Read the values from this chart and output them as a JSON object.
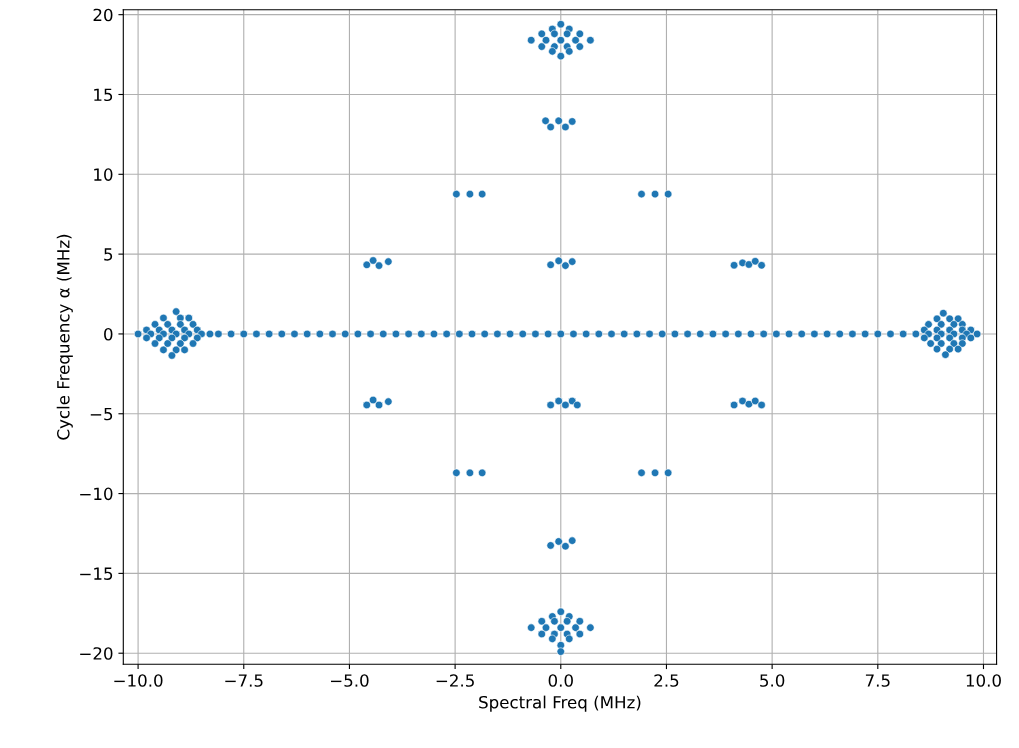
{
  "chart_data": {
    "type": "scatter",
    "xlabel": "Spectral Freq (MHz)",
    "ylabel": "Cycle Frequency α (MHz)",
    "xlim": [
      -10.35,
      10.31
    ],
    "ylim": [
      -20.69,
      20.31
    ],
    "xticks": [
      {
        "value": -10,
        "label": "−10.0"
      },
      {
        "value": -7.5,
        "label": "−7.5"
      },
      {
        "value": -5,
        "label": "−5.0"
      },
      {
        "value": -2.5,
        "label": "−2.5"
      },
      {
        "value": 0,
        "label": "0.0"
      },
      {
        "value": 2.5,
        "label": "2.5"
      },
      {
        "value": 5,
        "label": "5.0"
      },
      {
        "value": 7.5,
        "label": "7.5"
      },
      {
        "value": 10,
        "label": "10.0"
      }
    ],
    "yticks": [
      -20,
      -15,
      -10,
      -5,
      0,
      5,
      10,
      15,
      20
    ],
    "grid": true,
    "marker": "circle",
    "series": [
      {
        "color": "#1f77b4",
        "x": [
          -8.1,
          -7.8,
          -7.5,
          -7.2,
          -6.9,
          -6.6,
          -6.3,
          -6.0,
          -5.7,
          -5.4,
          -5.1,
          -4.8,
          -4.5,
          -4.2,
          -3.9,
          -3.6,
          -3.3,
          -3.0,
          -2.7,
          -2.4,
          -2.1,
          -1.8,
          -1.5,
          -1.2,
          -0.9,
          -0.6,
          -0.3,
          0.0,
          0.3,
          0.6,
          0.9,
          1.2,
          1.5,
          1.8,
          2.1,
          2.4,
          2.7,
          3.0,
          3.3,
          3.6,
          3.9,
          4.2,
          4.5,
          4.8,
          5.1,
          5.4,
          5.7,
          6.0,
          6.3,
          6.6,
          6.9,
          7.2,
          7.5,
          7.8,
          8.1,
          -9.1,
          -9.4,
          -9.0,
          -8.8,
          -9.6,
          -9.3,
          -9.0,
          -8.7,
          -9.8,
          -9.5,
          -9.2,
          -8.9,
          -8.6,
          -10.0,
          -9.7,
          -9.4,
          -9.1,
          -8.8,
          -8.5,
          -8.3,
          -9.8,
          -9.5,
          -9.2,
          -8.9,
          -8.6,
          -9.6,
          -9.3,
          -9.0,
          -8.7,
          -9.4,
          -9.1,
          -8.9,
          -9.2,
          9.05,
          8.9,
          9.2,
          9.4,
          8.7,
          9.0,
          9.3,
          9.5,
          8.6,
          8.9,
          9.2,
          9.5,
          9.7,
          8.4,
          8.7,
          9.0,
          9.3,
          9.6,
          9.85,
          8.6,
          8.9,
          9.2,
          9.5,
          9.7,
          8.75,
          9.0,
          9.3,
          9.5,
          8.9,
          9.2,
          9.4,
          9.1,
          0,
          -0.2,
          0.2,
          -0.45,
          -0.15,
          0.15,
          0.45,
          -0.7,
          -0.35,
          0,
          0.35,
          0.7,
          -0.45,
          -0.15,
          0.15,
          0.45,
          -0.2,
          0.2,
          0,
          0,
          -0.2,
          0.2,
          -0.45,
          -0.15,
          0.15,
          0.45,
          -0.7,
          -0.35,
          0,
          0.35,
          0.7,
          -0.45,
          -0.15,
          0.15,
          0.45,
          -0.2,
          0.2,
          0,
          0,
          -0.24,
          -0.05,
          0.11,
          0.27,
          -0.36,
          -2.47,
          -2.15,
          -1.86,
          1.91,
          2.23,
          2.54,
          -4.59,
          -4.44,
          -4.3,
          -4.08,
          -0.24,
          -0.05,
          0.11,
          0.27,
          4.1,
          4.3,
          4.45,
          4.6,
          4.75,
          -4.59,
          -4.44,
          -4.3,
          -4.08,
          -0.24,
          -0.05,
          0.11,
          0.27,
          0.39,
          4.1,
          4.3,
          4.45,
          4.6,
          4.75,
          -2.47,
          -2.15,
          -1.86,
          1.91,
          2.23,
          2.54,
          -0.24,
          -0.05,
          0.11,
          0.27
        ],
        "values": [
          0,
          0,
          0,
          0,
          0,
          0,
          0,
          0,
          0,
          0,
          0,
          0,
          0,
          0,
          0,
          0,
          0,
          0,
          0,
          0,
          0,
          0,
          0,
          0,
          0,
          0,
          0,
          0,
          0,
          0,
          0,
          0,
          0,
          0,
          0,
          0,
          0,
          0,
          0,
          0,
          0,
          0,
          0,
          0,
          0,
          0,
          0,
          0,
          0,
          0,
          0,
          0,
          0,
          0,
          0,
          1.4,
          1.0,
          1.0,
          1.0,
          0.6,
          0.6,
          0.6,
          0.6,
          0.25,
          0.25,
          0.25,
          0.25,
          0.25,
          0,
          0,
          0,
          0,
          0,
          0,
          0,
          -0.25,
          -0.25,
          -0.25,
          -0.25,
          -0.25,
          -0.6,
          -0.6,
          -0.6,
          -0.6,
          -1.0,
          -1.0,
          -1.0,
          -1.35,
          1.3,
          0.95,
          0.95,
          0.95,
          0.6,
          0.6,
          0.6,
          0.6,
          0.25,
          0.25,
          0.25,
          0.25,
          0.25,
          0,
          0,
          0,
          0,
          0,
          0,
          -0.25,
          -0.25,
          -0.25,
          -0.25,
          -0.25,
          -0.6,
          -0.6,
          -0.6,
          -0.6,
          -0.95,
          -0.95,
          -0.95,
          -1.3,
          19.4,
          19.1,
          19.1,
          18.8,
          18.8,
          18.8,
          18.8,
          18.4,
          18.4,
          18.4,
          18.4,
          18.4,
          18.0,
          18.0,
          18.0,
          18.0,
          17.7,
          17.7,
          17.4,
          -17.4,
          -17.7,
          -17.7,
          -18.0,
          -18.0,
          -18.0,
          -18.0,
          -18.4,
          -18.4,
          -18.4,
          -18.4,
          -18.4,
          -18.8,
          -18.8,
          -18.8,
          -18.8,
          -19.1,
          -19.1,
          -19.5,
          -19.9,
          12.96,
          13.35,
          12.96,
          13.31,
          13.35,
          8.76,
          8.76,
          8.76,
          8.76,
          8.76,
          8.76,
          4.33,
          4.6,
          4.28,
          4.53,
          4.33,
          4.58,
          4.28,
          4.53,
          4.3,
          4.45,
          4.35,
          4.55,
          4.3,
          -4.45,
          -4.14,
          -4.45,
          -4.24,
          -4.45,
          -4.2,
          -4.45,
          -4.2,
          -4.45,
          -4.45,
          -4.2,
          -4.4,
          -4.2,
          -4.45,
          -8.7,
          -8.7,
          -8.7,
          -8.7,
          -8.7,
          -8.7,
          -13.25,
          -13.0,
          -13.3,
          -12.95
        ]
      }
    ]
  }
}
